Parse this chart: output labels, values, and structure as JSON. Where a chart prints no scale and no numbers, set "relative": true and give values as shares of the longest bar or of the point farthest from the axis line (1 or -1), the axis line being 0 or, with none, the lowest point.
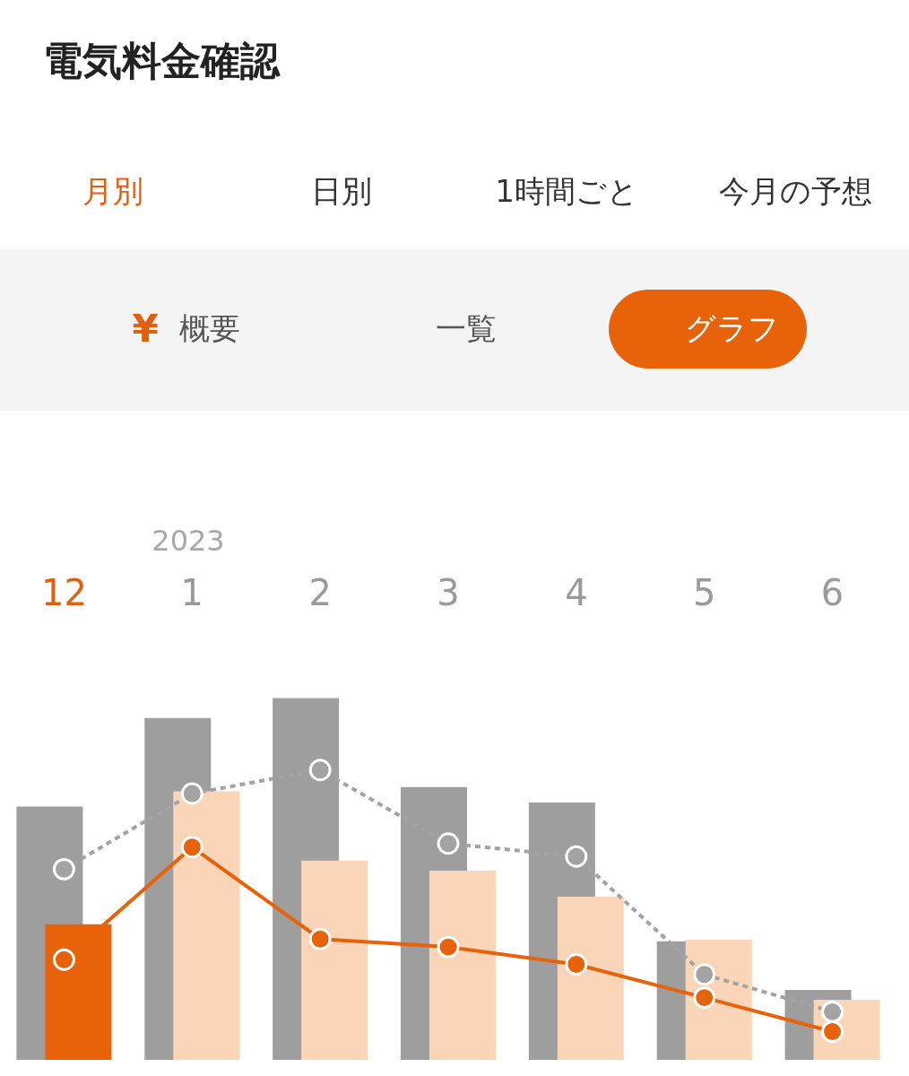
{
  "chart_data": {
    "type": "bar",
    "relative": true,
    "title": "電気料金確認",
    "categories": [
      "12",
      "1",
      "2",
      "3",
      "4",
      "5",
      "6"
    ],
    "series": [
      {
        "color": "#9e9e9e",
        "values": [
          0.7,
          0.945,
          1.0,
          0.754,
          0.711,
          0.328,
          0.193
        ]
      },
      {
        "color": "#fad5b8",
        "colors": [
          "#e8620a",
          "#fad5b8",
          "#fad5b8",
          "#fad5b8",
          "#fad5b8",
          "#fad5b8",
          "#fad5b8"
        ],
        "values": [
          0.375,
          0.742,
          0.551,
          0.523,
          0.451,
          0.332,
          0.166
        ]
      },
      {
        "type": "line",
        "color": "#a3a3a3",
        "line_style": "dashed",
        "marker": "circle",
        "values": [
          0.527,
          0.736,
          0.801,
          0.598,
          0.562,
          0.236,
          0.133
        ]
      },
      {
        "type": "line",
        "color": "#e8620a",
        "line_style": "solid",
        "marker": "circle",
        "values": [
          0.277,
          0.588,
          0.334,
          0.312,
          0.264,
          0.172,
          0.078
        ]
      }
    ],
    "annotations": [
      "月別",
      "日別",
      "1時間ごと",
      "今月の予想",
      "¥",
      "概要",
      "一覧",
      "グラフ",
      "2023"
    ],
    "grid": false
  }
}
